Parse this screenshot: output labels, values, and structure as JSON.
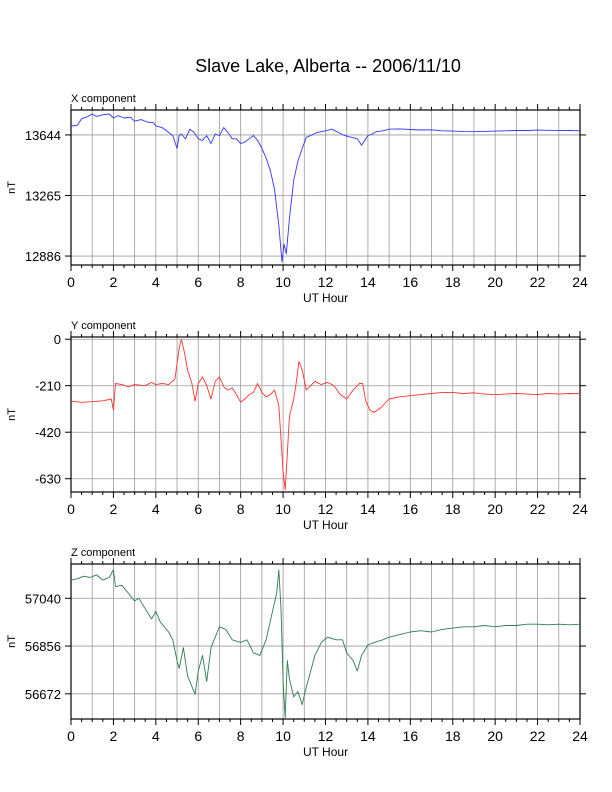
{
  "chart_data": {
    "title": "Slave Lake, Alberta -- 2006/11/10",
    "panels": [
      {
        "type": "line",
        "panel_label": "X component",
        "color": "#3333ff",
        "ylabel": "nT",
        "xlabel": "UT Hour",
        "xlim": [
          0,
          24
        ],
        "ylim": [
          12830,
          13800
        ],
        "yticks": [
          12886,
          13265,
          13644
        ],
        "xticks": [
          0,
          2,
          4,
          6,
          8,
          10,
          12,
          14,
          16,
          18,
          20,
          22,
          24
        ],
        "grid": true,
        "points": [
          [
            0,
            13700
          ],
          [
            0.3,
            13705
          ],
          [
            0.5,
            13745
          ],
          [
            0.8,
            13760
          ],
          [
            1.0,
            13775
          ],
          [
            1.2,
            13760
          ],
          [
            1.5,
            13770
          ],
          [
            1.8,
            13775
          ],
          [
            2.0,
            13750
          ],
          [
            2.2,
            13765
          ],
          [
            2.5,
            13750
          ],
          [
            2.8,
            13755
          ],
          [
            3.0,
            13730
          ],
          [
            3.3,
            13740
          ],
          [
            3.6,
            13725
          ],
          [
            3.9,
            13720
          ],
          [
            4.0,
            13700
          ],
          [
            4.3,
            13690
          ],
          [
            4.6,
            13660
          ],
          [
            4.8,
            13640
          ],
          [
            5.0,
            13560
          ],
          [
            5.1,
            13640
          ],
          [
            5.2,
            13650
          ],
          [
            5.4,
            13620
          ],
          [
            5.6,
            13680
          ],
          [
            5.8,
            13660
          ],
          [
            6.0,
            13620
          ],
          [
            6.2,
            13610
          ],
          [
            6.4,
            13640
          ],
          [
            6.6,
            13590
          ],
          [
            6.8,
            13650
          ],
          [
            7.0,
            13640
          ],
          [
            7.2,
            13690
          ],
          [
            7.4,
            13660
          ],
          [
            7.6,
            13620
          ],
          [
            7.8,
            13620
          ],
          [
            8.0,
            13590
          ],
          [
            8.2,
            13600
          ],
          [
            8.4,
            13620
          ],
          [
            8.6,
            13640
          ],
          [
            8.8,
            13610
          ],
          [
            9.0,
            13560
          ],
          [
            9.2,
            13500
          ],
          [
            9.4,
            13420
          ],
          [
            9.6,
            13300
          ],
          [
            9.8,
            13080
          ],
          [
            9.95,
            12850
          ],
          [
            10.05,
            12960
          ],
          [
            10.15,
            12900
          ],
          [
            10.3,
            13120
          ],
          [
            10.5,
            13360
          ],
          [
            10.7,
            13480
          ],
          [
            10.9,
            13560
          ],
          [
            11.1,
            13630
          ],
          [
            11.3,
            13640
          ],
          [
            11.6,
            13660
          ],
          [
            12.0,
            13670
          ],
          [
            12.3,
            13680
          ],
          [
            12.6,
            13660
          ],
          [
            12.9,
            13640
          ],
          [
            13.2,
            13630
          ],
          [
            13.5,
            13620
          ],
          [
            13.7,
            13580
          ],
          [
            13.85,
            13610
          ],
          [
            14.0,
            13640
          ],
          [
            14.2,
            13650
          ],
          [
            14.4,
            13665
          ],
          [
            14.7,
            13670
          ],
          [
            15.0,
            13680
          ],
          [
            15.5,
            13682
          ],
          [
            16.0,
            13678
          ],
          [
            16.5,
            13675
          ],
          [
            17.0,
            13676
          ],
          [
            17.5,
            13670
          ],
          [
            18.0,
            13668
          ],
          [
            18.5,
            13665
          ],
          [
            19.0,
            13664
          ],
          [
            19.5,
            13666
          ],
          [
            20.0,
            13668
          ],
          [
            20.5,
            13670
          ],
          [
            21.0,
            13672
          ],
          [
            21.5,
            13672
          ],
          [
            22.0,
            13674
          ],
          [
            22.5,
            13673
          ],
          [
            23.0,
            13671
          ],
          [
            23.5,
            13672
          ],
          [
            24.0,
            13670
          ]
        ]
      },
      {
        "type": "line",
        "panel_label": "Y component",
        "color": "#ff3333",
        "ylabel": "nT",
        "xlabel": "UT Hour",
        "xlim": [
          0,
          24
        ],
        "ylim": [
          -690,
          10
        ],
        "yticks": [
          -630,
          -420,
          -210,
          0
        ],
        "xticks": [
          0,
          2,
          4,
          6,
          8,
          10,
          12,
          14,
          16,
          18,
          20,
          22,
          24
        ],
        "grid": true,
        "points": [
          [
            0,
            -280
          ],
          [
            0.5,
            -285
          ],
          [
            1.0,
            -282
          ],
          [
            1.5,
            -278
          ],
          [
            1.9,
            -270
          ],
          [
            2.0,
            -320
          ],
          [
            2.1,
            -200
          ],
          [
            2.4,
            -205
          ],
          [
            2.7,
            -215
          ],
          [
            3.0,
            -205
          ],
          [
            3.5,
            -210
          ],
          [
            3.8,
            -195
          ],
          [
            4.0,
            -205
          ],
          [
            4.3,
            -200
          ],
          [
            4.6,
            -205
          ],
          [
            4.9,
            -180
          ],
          [
            5.1,
            -40
          ],
          [
            5.2,
            0
          ],
          [
            5.35,
            -60
          ],
          [
            5.5,
            -140
          ],
          [
            5.7,
            -200
          ],
          [
            5.85,
            -280
          ],
          [
            6.0,
            -200
          ],
          [
            6.2,
            -170
          ],
          [
            6.4,
            -210
          ],
          [
            6.6,
            -270
          ],
          [
            6.8,
            -190
          ],
          [
            7.0,
            -170
          ],
          [
            7.2,
            -215
          ],
          [
            7.4,
            -230
          ],
          [
            7.6,
            -220
          ],
          [
            7.8,
            -250
          ],
          [
            8.0,
            -285
          ],
          [
            8.2,
            -270
          ],
          [
            8.4,
            -250
          ],
          [
            8.6,
            -240
          ],
          [
            8.8,
            -200
          ],
          [
            9.0,
            -240
          ],
          [
            9.2,
            -260
          ],
          [
            9.4,
            -250
          ],
          [
            9.6,
            -230
          ],
          [
            9.8,
            -300
          ],
          [
            9.9,
            -450
          ],
          [
            10.0,
            -600
          ],
          [
            10.1,
            -680
          ],
          [
            10.2,
            -520
          ],
          [
            10.3,
            -350
          ],
          [
            10.5,
            -270
          ],
          [
            10.6,
            -210
          ],
          [
            10.75,
            -100
          ],
          [
            10.9,
            -140
          ],
          [
            11.1,
            -230
          ],
          [
            11.3,
            -210
          ],
          [
            11.5,
            -190
          ],
          [
            11.8,
            -205
          ],
          [
            12.1,
            -195
          ],
          [
            12.4,
            -210
          ],
          [
            12.7,
            -250
          ],
          [
            13.0,
            -270
          ],
          [
            13.3,
            -230
          ],
          [
            13.6,
            -200
          ],
          [
            13.75,
            -200
          ],
          [
            13.9,
            -280
          ],
          [
            14.1,
            -320
          ],
          [
            14.3,
            -330
          ],
          [
            14.6,
            -310
          ],
          [
            15.0,
            -270
          ],
          [
            15.5,
            -260
          ],
          [
            16.0,
            -255
          ],
          [
            16.5,
            -250
          ],
          [
            17.0,
            -245
          ],
          [
            17.5,
            -240
          ],
          [
            18.0,
            -240
          ],
          [
            18.5,
            -245
          ],
          [
            19.0,
            -242
          ],
          [
            19.5,
            -248
          ],
          [
            20.0,
            -250
          ],
          [
            20.5,
            -248
          ],
          [
            21.0,
            -245
          ],
          [
            21.5,
            -248
          ],
          [
            22.0,
            -250
          ],
          [
            22.5,
            -245
          ],
          [
            23.0,
            -248
          ],
          [
            23.5,
            -245
          ],
          [
            24.0,
            -246
          ]
        ]
      },
      {
        "type": "line",
        "panel_label": "Z component",
        "color": "#2e7d4f",
        "ylabel": "nT",
        "xlabel": "UT Hour",
        "xlim": [
          0,
          24
        ],
        "ylim": [
          56575,
          57172
        ],
        "yticks": [
          56672,
          56856,
          57040
        ],
        "xticks": [
          0,
          2,
          4,
          6,
          8,
          10,
          12,
          14,
          16,
          18,
          20,
          22,
          24
        ],
        "grid": true,
        "points": [
          [
            0,
            57110
          ],
          [
            0.3,
            57115
          ],
          [
            0.6,
            57125
          ],
          [
            0.9,
            57120
          ],
          [
            1.2,
            57130
          ],
          [
            1.5,
            57110
          ],
          [
            1.8,
            57120
          ],
          [
            2.0,
            57150
          ],
          [
            2.1,
            57085
          ],
          [
            2.4,
            57090
          ],
          [
            2.7,
            57060
          ],
          [
            3.0,
            57030
          ],
          [
            3.2,
            57040
          ],
          [
            3.5,
            57000
          ],
          [
            3.8,
            56960
          ],
          [
            4.0,
            56990
          ],
          [
            4.2,
            56950
          ],
          [
            4.4,
            56930
          ],
          [
            4.6,
            56910
          ],
          [
            4.8,
            56880
          ],
          [
            5.0,
            56800
          ],
          [
            5.1,
            56770
          ],
          [
            5.3,
            56850
          ],
          [
            5.5,
            56740
          ],
          [
            5.7,
            56700
          ],
          [
            5.85,
            56670
          ],
          [
            6.0,
            56760
          ],
          [
            6.2,
            56820
          ],
          [
            6.4,
            56720
          ],
          [
            6.6,
            56850
          ],
          [
            6.8,
            56890
          ],
          [
            7.0,
            56930
          ],
          [
            7.3,
            56920
          ],
          [
            7.6,
            56880
          ],
          [
            8.0,
            56870
          ],
          [
            8.3,
            56880
          ],
          [
            8.6,
            56830
          ],
          [
            8.9,
            56820
          ],
          [
            9.2,
            56880
          ],
          [
            9.5,
            56990
          ],
          [
            9.7,
            57060
          ],
          [
            9.8,
            57150
          ],
          [
            9.9,
            57000
          ],
          [
            10.0,
            56720
          ],
          [
            10.1,
            56580
          ],
          [
            10.2,
            56800
          ],
          [
            10.3,
            56730
          ],
          [
            10.5,
            56660
          ],
          [
            10.7,
            56680
          ],
          [
            10.9,
            56630
          ],
          [
            11.1,
            56700
          ],
          [
            11.3,
            56760
          ],
          [
            11.5,
            56820
          ],
          [
            11.8,
            56870
          ],
          [
            12.1,
            56890
          ],
          [
            12.5,
            56880
          ],
          [
            12.8,
            56880
          ],
          [
            13.0,
            56830
          ],
          [
            13.3,
            56800
          ],
          [
            13.5,
            56760
          ],
          [
            13.7,
            56820
          ],
          [
            14.0,
            56860
          ],
          [
            14.3,
            56870
          ],
          [
            14.7,
            56880
          ],
          [
            15.0,
            56890
          ],
          [
            15.5,
            56900
          ],
          [
            16.0,
            56910
          ],
          [
            16.5,
            56915
          ],
          [
            17.0,
            56910
          ],
          [
            17.5,
            56920
          ],
          [
            18.0,
            56925
          ],
          [
            18.5,
            56930
          ],
          [
            19.0,
            56930
          ],
          [
            19.5,
            56935
          ],
          [
            20.0,
            56930
          ],
          [
            20.5,
            56935
          ],
          [
            21.0,
            56935
          ],
          [
            21.5,
            56940
          ],
          [
            22.0,
            56940
          ],
          [
            22.5,
            56938
          ],
          [
            23.0,
            56940
          ],
          [
            23.5,
            56938
          ],
          [
            24.0,
            56940
          ]
        ]
      }
    ]
  }
}
